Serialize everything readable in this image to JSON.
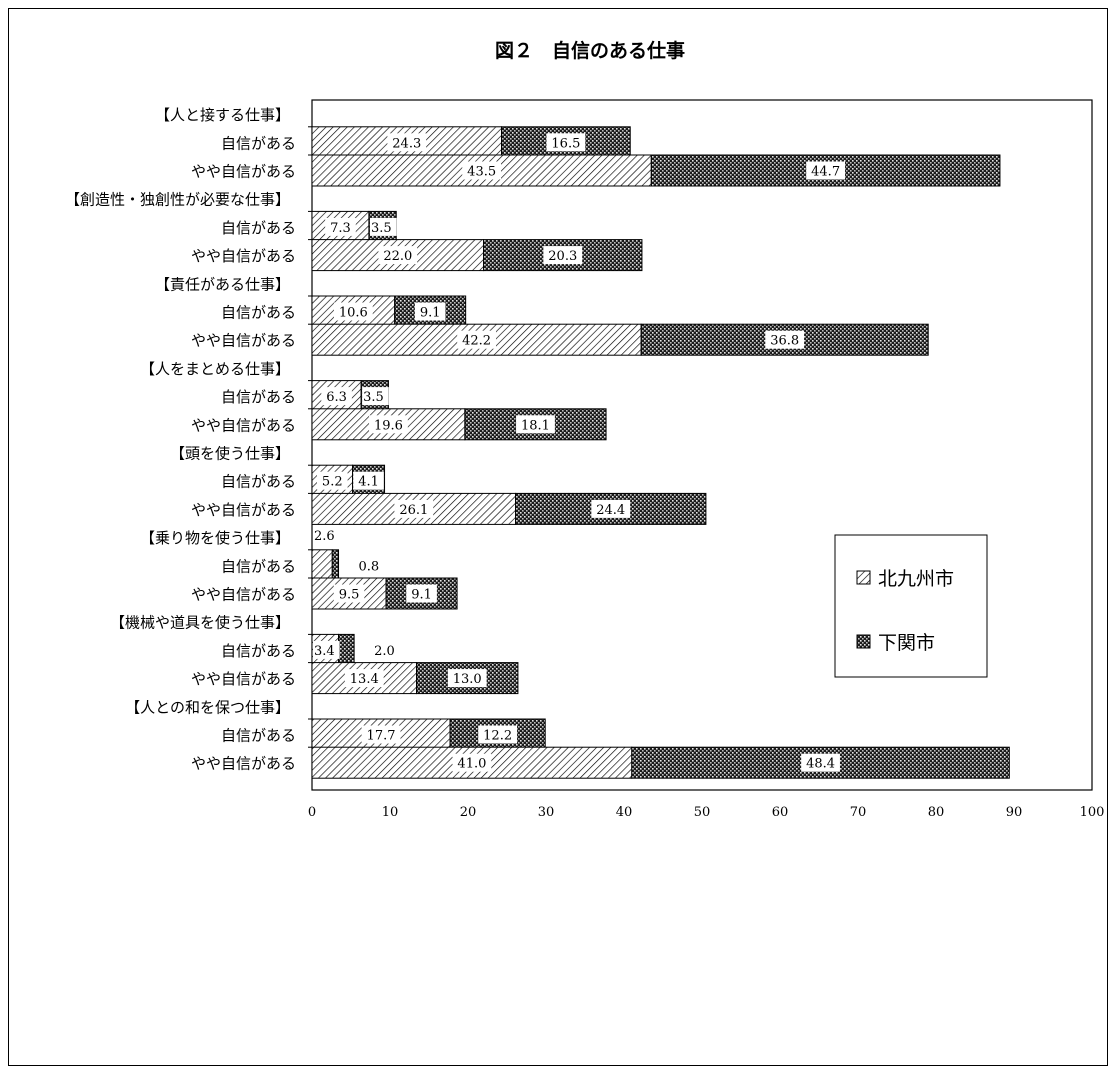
{
  "chart_data": {
    "type": "bar",
    "orientation": "horizontal",
    "stacked": true,
    "title": "図２　自信のある仕事",
    "xlim": [
      0,
      100
    ],
    "x_ticks": [
      "0",
      "10",
      "20",
      "30",
      "40",
      "50",
      "60",
      "70",
      "80",
      "90",
      "100"
    ],
    "legend_position": "right-middle",
    "grid": false,
    "series": [
      {
        "name": "北九州市",
        "pattern": "diagonal-hatch",
        "color": "#000000"
      },
      {
        "name": "下関市",
        "pattern": "dark-crosshatch",
        "color": "#000000"
      }
    ],
    "groups": [
      {
        "label": "【人と接する仕事】",
        "rows": [
          {
            "label": "自信がある",
            "values": [
              24.3,
              16.5
            ],
            "value_labels": [
              "24.3",
              "16.5"
            ]
          },
          {
            "label": "やや自信がある",
            "values": [
              43.5,
              44.7
            ],
            "value_labels": [
              "43.5",
              "44.7"
            ]
          }
        ]
      },
      {
        "label": "【創造性・独創性が必要な仕事】",
        "rows": [
          {
            "label": "自信がある",
            "values": [
              7.3,
              3.5
            ],
            "value_labels": [
              "7.3",
              "3.5"
            ]
          },
          {
            "label": "やや自信がある",
            "values": [
              22.0,
              20.3
            ],
            "value_labels": [
              "22.0",
              "20.3"
            ]
          }
        ]
      },
      {
        "label": "【責任がある仕事】",
        "rows": [
          {
            "label": "自信がある",
            "values": [
              10.6,
              9.1
            ],
            "value_labels": [
              "10.6",
              "9.1"
            ]
          },
          {
            "label": "やや自信がある",
            "values": [
              42.2,
              36.8
            ],
            "value_labels": [
              "42.2",
              "36.8"
            ]
          }
        ]
      },
      {
        "label": "【人をまとめる仕事】",
        "rows": [
          {
            "label": "自信がある",
            "values": [
              6.3,
              3.5
            ],
            "value_labels": [
              "6.3",
              "3.5"
            ]
          },
          {
            "label": "やや自信がある",
            "values": [
              19.6,
              18.1
            ],
            "value_labels": [
              "19.6",
              "18.1"
            ]
          }
        ]
      },
      {
        "label": "【頭を使う仕事】",
        "rows": [
          {
            "label": "自信がある",
            "values": [
              5.2,
              4.1
            ],
            "value_labels": [
              "5.2",
              "4.1"
            ]
          },
          {
            "label": "やや自信がある",
            "values": [
              26.1,
              24.4
            ],
            "value_labels": [
              "26.1",
              "24.4"
            ]
          }
        ]
      },
      {
        "label": "【乗り物を使う仕事】",
        "rows": [
          {
            "label": "自信がある",
            "values": [
              2.6,
              0.8
            ],
            "value_labels": [
              "2.6",
              "0.8"
            ]
          },
          {
            "label": "やや自信がある",
            "values": [
              9.5,
              9.1
            ],
            "value_labels": [
              "9.5",
              "9.1"
            ]
          }
        ]
      },
      {
        "label": "【機械や道具を使う仕事】",
        "rows": [
          {
            "label": "自信がある",
            "values": [
              3.4,
              2.0
            ],
            "value_labels": [
              "3.4",
              "2.0"
            ]
          },
          {
            "label": "やや自信がある",
            "values": [
              13.4,
              13.0
            ],
            "value_labels": [
              "13.4",
              "13.0"
            ]
          }
        ]
      },
      {
        "label": "【人との和を保つ仕事】",
        "rows": [
          {
            "label": "自信がある",
            "values": [
              17.7,
              12.2
            ],
            "value_labels": [
              "17.7",
              "12.2"
            ]
          },
          {
            "label": "やや自信がある",
            "values": [
              41.0,
              48.4
            ],
            "value_labels": [
              "41.0",
              "48.4"
            ]
          }
        ]
      }
    ]
  }
}
